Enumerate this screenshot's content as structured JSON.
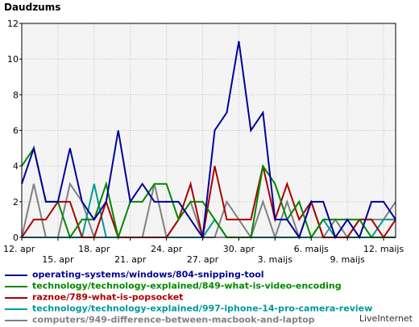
{
  "chart_data": {
    "type": "line",
    "title": "Daudzums",
    "ylim": [
      0,
      12
    ],
    "yticks": [
      0,
      2,
      4,
      6,
      8,
      10,
      12
    ],
    "grid": true,
    "x": [
      "12. apr",
      "13. apr",
      "14. apr",
      "15. apr",
      "16. apr",
      "17. apr",
      "18. apr",
      "19. apr",
      "20. apr",
      "21. apr",
      "22. apr",
      "23. apr",
      "24. apr",
      "25. apr",
      "26. apr",
      "27. apr",
      "28. apr",
      "29. apr",
      "30. apr",
      "1. maijs",
      "2. maijs",
      "3. maijs",
      "4. maijs",
      "5. maijs",
      "6. maijs",
      "7. maijs",
      "8. maijs",
      "9. maijs",
      "10. maijs",
      "11. maijs",
      "12. maijs",
      "13. maijs"
    ],
    "xtick_labels": [
      {
        "index": 0,
        "label": "12. apr",
        "row": 0
      },
      {
        "index": 3,
        "label": "15. apr",
        "row": 1
      },
      {
        "index": 6,
        "label": "18. apr",
        "row": 0
      },
      {
        "index": 9,
        "label": "21. apr",
        "row": 1
      },
      {
        "index": 12,
        "label": "24. apr",
        "row": 0
      },
      {
        "index": 15,
        "label": "27. apr",
        "row": 1
      },
      {
        "index": 18,
        "label": "30. apr",
        "row": 0
      },
      {
        "index": 21,
        "label": "3. maijs",
        "row": 1
      },
      {
        "index": 24,
        "label": "6. maijs",
        "row": 0
      },
      {
        "index": 27,
        "label": "9. maijs",
        "row": 1
      },
      {
        "index": 30,
        "label": "12. maijs",
        "row": 0
      }
    ],
    "series": [
      {
        "name": "operating-systems/windows/804-snipping-tool",
        "color": "#000099",
        "values": [
          3,
          5,
          2,
          2,
          5,
          2,
          1,
          2,
          6,
          2,
          3,
          2,
          2,
          2,
          1,
          0,
          6,
          7,
          11,
          6,
          7,
          1,
          1,
          0,
          2,
          2,
          0,
          1,
          0,
          2,
          2,
          1
        ]
      },
      {
        "name": "technology/technology-explained/849-what-is-video-encoding",
        "color": "#008800",
        "values": [
          4,
          5,
          2,
          2,
          0,
          1,
          1,
          3,
          0,
          2,
          2,
          3,
          3,
          1,
          2,
          2,
          1,
          0,
          0,
          0,
          4,
          3,
          1,
          2,
          0,
          1,
          1,
          1,
          1,
          0,
          0,
          0
        ]
      },
      {
        "name": "raznoe/789-what-is-popsocket",
        "color": "#aa0000",
        "values": [
          0,
          1,
          1,
          2,
          2,
          0,
          0,
          2,
          0,
          0,
          0,
          0,
          0,
          1,
          3,
          0,
          4,
          1,
          1,
          1,
          4,
          1,
          3,
          1,
          2,
          0,
          0,
          0,
          1,
          1,
          0,
          1
        ]
      },
      {
        "name": "technology/technology-explained/997-iphone-14-pro-camera-review",
        "color": "#009999",
        "values": [
          0,
          0,
          0,
          0,
          0,
          0,
          3,
          0,
          0,
          0,
          0,
          0,
          0,
          0,
          0,
          0,
          1,
          0,
          0,
          0,
          0,
          0,
          0,
          0,
          0,
          1,
          0,
          0,
          0,
          0,
          1,
          1
        ]
      },
      {
        "name": "computers/949-difference-between-macbook-and-laptop",
        "color": "#808080",
        "values": [
          0,
          3,
          0,
          0,
          3,
          2,
          0,
          0,
          0,
          0,
          0,
          3,
          0,
          1,
          2,
          0,
          0,
          2,
          1,
          0,
          2,
          0,
          2,
          0,
          2,
          0,
          1,
          0,
          1,
          1,
          1,
          2
        ]
      }
    ]
  },
  "source_label": "LiveInternet"
}
